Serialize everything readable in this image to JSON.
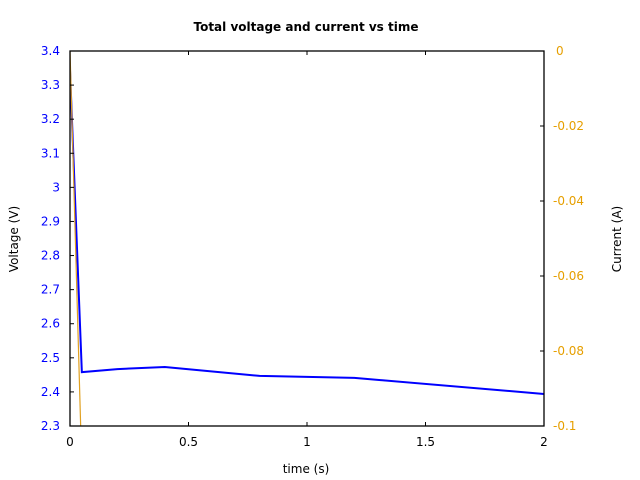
{
  "chart_data": {
    "type": "line",
    "title": "Total voltage and current vs time",
    "xlabel": "time (s)",
    "ylabel": "Voltage (V)",
    "y2label": "Current (A)",
    "xlim": [
      0,
      2
    ],
    "ylim": [
      2.3,
      3.4
    ],
    "y2lim": [
      -0.1,
      0
    ],
    "x_ticks": [
      "0",
      "0.5",
      "1",
      "1.5",
      "2"
    ],
    "y_ticks": [
      "2.3",
      "2.4",
      "2.5",
      "2.6",
      "2.7",
      "2.8",
      "2.9",
      "3",
      "3.1",
      "3.2",
      "3.3",
      "3.4"
    ],
    "y2_ticks": [
      "-0.1",
      "-0.08",
      "-0.06",
      "-0.04",
      "-0.02",
      "0"
    ],
    "grid": false,
    "series": [
      {
        "name": "Voltage",
        "axis": "left",
        "color": "#0000ff",
        "x": [
          0,
          0.05,
          0.2,
          0.4,
          0.8,
          1.2,
          2.0
        ],
        "values": [
          3.345,
          2.458,
          2.467,
          2.473,
          2.447,
          2.441,
          2.394
        ]
      },
      {
        "name": "Current",
        "axis": "right",
        "color": "#e0a020",
        "x": [
          0,
          0.045
        ],
        "values": [
          0,
          -0.1
        ]
      }
    ]
  },
  "colors": {
    "left_axis": "#0000ff",
    "right_axis": "#e69f00"
  }
}
